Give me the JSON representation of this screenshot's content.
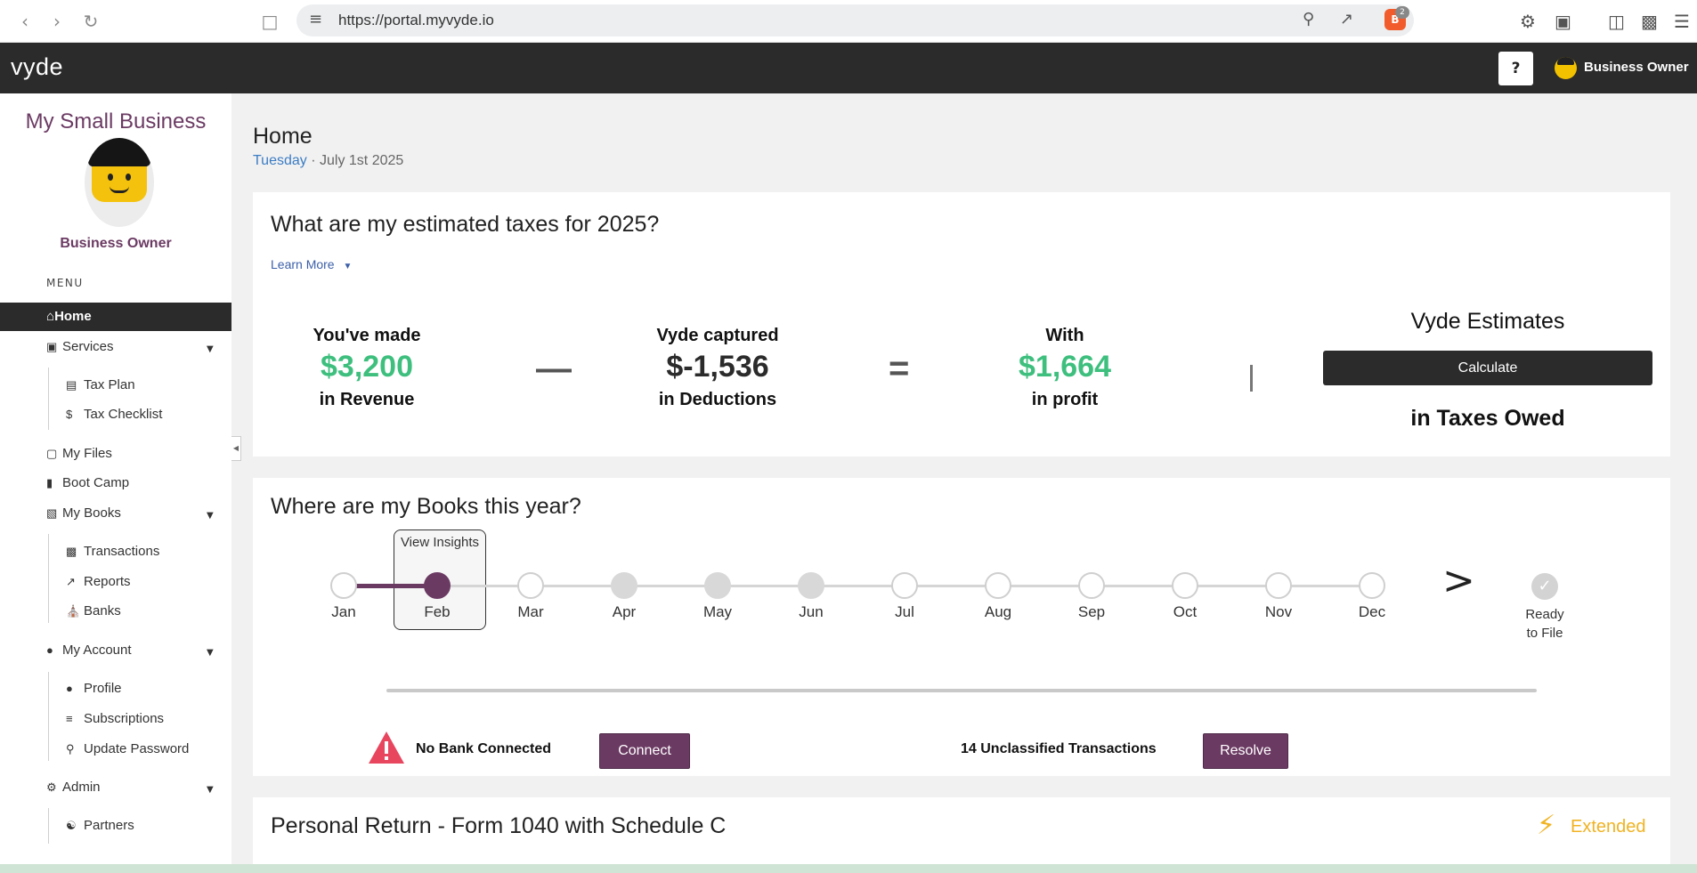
{
  "browser": {
    "url": "https://portal.myvyde.io",
    "shield_count": "2"
  },
  "header": {
    "logo": "vyde",
    "help_label": "?",
    "user_name": "Business Owner"
  },
  "sidebar": {
    "business_name": "My Small Business",
    "role": "Business Owner",
    "menu_label": "MENU",
    "items": [
      {
        "label": "Home",
        "icon": "home-icon"
      },
      {
        "label": "Services",
        "icon": "briefcase-icon"
      },
      {
        "label": "Tax Plan",
        "icon": "notebook-icon"
      },
      {
        "label": "Tax Checklist",
        "icon": "dollar-icon"
      },
      {
        "label": "My Files",
        "icon": "folder-icon"
      },
      {
        "label": "Boot Camp",
        "icon": "video-icon"
      },
      {
        "label": "My Books",
        "icon": "book-icon"
      },
      {
        "label": "Transactions",
        "icon": "money-icon"
      },
      {
        "label": "Reports",
        "icon": "chart-icon"
      },
      {
        "label": "Banks",
        "icon": "bank-icon"
      },
      {
        "label": "My Account",
        "icon": "user-circle-icon"
      },
      {
        "label": "Profile",
        "icon": "person-icon"
      },
      {
        "label": "Subscriptions",
        "icon": "list-icon"
      },
      {
        "label": "Update Password",
        "icon": "key-user-icon"
      },
      {
        "label": "Admin",
        "icon": "user-gear-icon"
      },
      {
        "label": "Partners",
        "icon": "handshake-icon"
      }
    ]
  },
  "page": {
    "title": "Home",
    "day": "Tuesday",
    "date": "· July 1st 2025"
  },
  "taxes": {
    "title": "What are my estimated taxes for 2025?",
    "learn_more": "Learn More",
    "revenue_label": "You've made",
    "revenue_value": "$3,200",
    "revenue_sub": "in Revenue",
    "minus": "—",
    "deductions_label": "Vyde captured",
    "deductions_value": "$-1,536",
    "deductions_sub": "in Deductions",
    "equals": "=",
    "profit_label": "With",
    "profit_value": "$1,664",
    "profit_sub": "in profit",
    "estimates_title": "Vyde Estimates",
    "calculate_label": "Calculate",
    "estimates_sub": "in Taxes Owed"
  },
  "books": {
    "title": "Where are my Books this year?",
    "insights_label": "View Insights",
    "months": [
      {
        "label": "Jan",
        "state": "open"
      },
      {
        "label": "Feb",
        "state": "active"
      },
      {
        "label": "Mar",
        "state": "open"
      },
      {
        "label": "Apr",
        "state": "done"
      },
      {
        "label": "May",
        "state": "done"
      },
      {
        "label": "Jun",
        "state": "done"
      },
      {
        "label": "Jul",
        "state": "open"
      },
      {
        "label": "Aug",
        "state": "open"
      },
      {
        "label": "Sep",
        "state": "open"
      },
      {
        "label": "Oct",
        "state": "open"
      },
      {
        "label": "Nov",
        "state": "open"
      },
      {
        "label": "Dec",
        "state": "open"
      }
    ],
    "next_label": ">",
    "ready_label": "Ready to File",
    "bank_status": "No Bank Connected",
    "connect_label": "Connect",
    "unclassified": "14 Unclassified Transactions",
    "resolve_label": "Resolve"
  },
  "personal_return": {
    "title": "Personal Return - Form 1040 with Schedule C",
    "status": "Extended"
  },
  "colors": {
    "brand_purple": "#6b3a63",
    "money_green": "#3ebf7e",
    "header_dark": "#2b2b2b",
    "extended_yellow": "#f0b323"
  }
}
